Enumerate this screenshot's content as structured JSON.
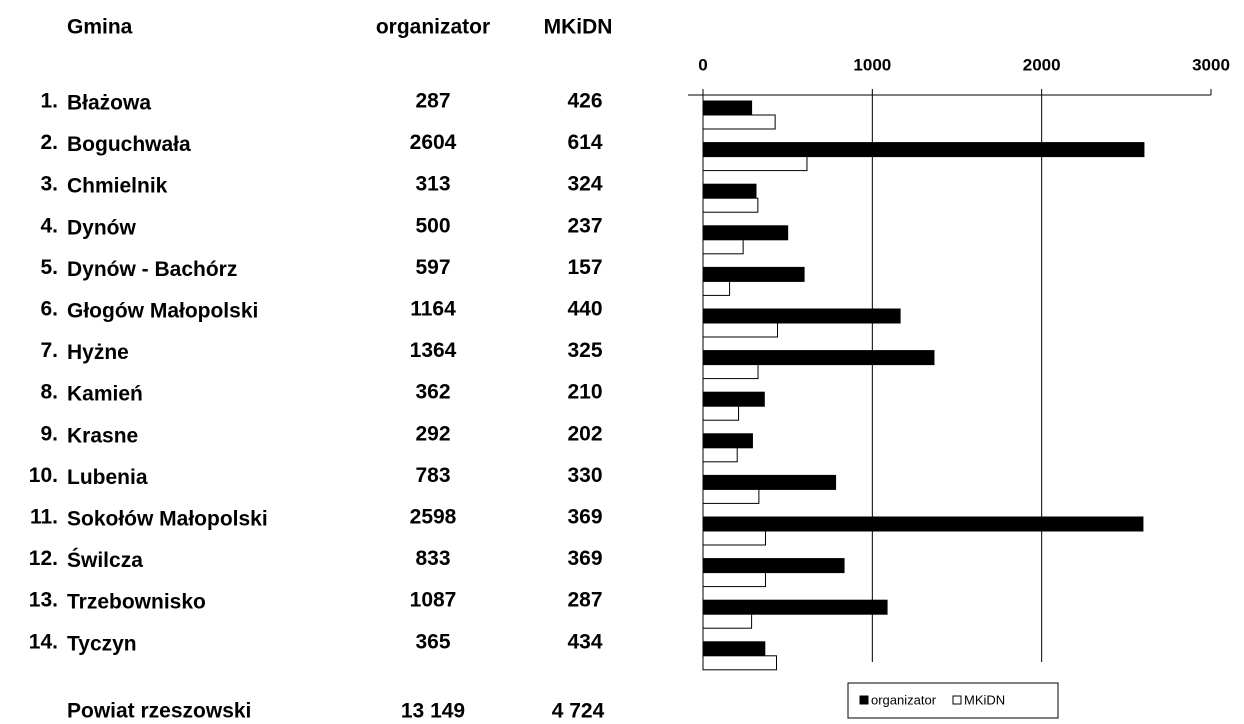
{
  "header": {
    "col_name": "Gmina",
    "total_label": "Powiat rzeszowski",
    "total_organizator": "13 149",
    "total_mkidn": "4 724"
  },
  "row_numbers": [
    "1.",
    "2.",
    "3.",
    "4.",
    "5.",
    "6.",
    "7.",
    "8.",
    "9.",
    "10.",
    "11.",
    "12.",
    "13.",
    "14."
  ],
  "chart_data": {
    "type": "barh",
    "categories": [
      "Błażowa",
      "Boguchwała",
      "Chmielnik",
      "Dynów",
      "Dynów - Bachórz",
      "Głogów Małopolski",
      "Hyżne",
      "Kamień",
      "Krasne",
      "Lubenia",
      "Sokołów Małopolski",
      "Świlcza",
      "Trzebownisko",
      "Tyczyn"
    ],
    "series": [
      {
        "name": "organizator",
        "color": "#000000",
        "values": [
          287,
          2604,
          313,
          500,
          597,
          1164,
          1364,
          362,
          292,
          783,
          2598,
          833,
          1087,
          365
        ]
      },
      {
        "name": "MKiDN",
        "color": "#ffffff",
        "values": [
          426,
          614,
          324,
          237,
          157,
          440,
          325,
          210,
          202,
          330,
          369,
          369,
          287,
          434
        ]
      }
    ],
    "xlim": [
      0,
      3000
    ],
    "xticks": [
      0,
      1000,
      2000,
      3000
    ],
    "grid": true,
    "legend": "bottom"
  }
}
